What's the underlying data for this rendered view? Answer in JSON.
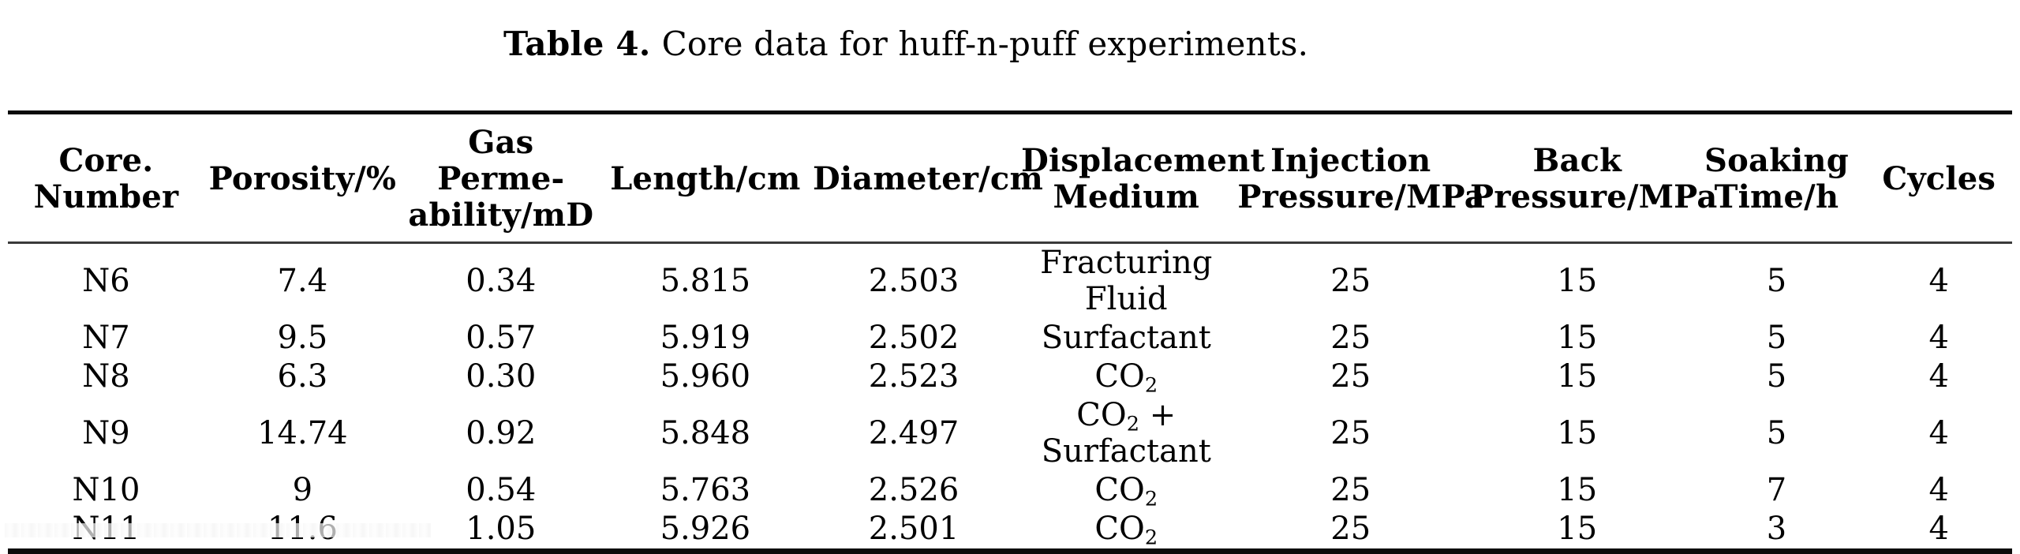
{
  "caption": {
    "label": "Table 4.",
    "text": "Core data for huff-n-puff experiments."
  },
  "table": {
    "columns": [
      "Core.\nNumber",
      "Porosity/%",
      "Gas Perme-\nability/mD",
      "Length/cm",
      "Diameter/cm",
      "Displacement\nMedium",
      "Injection\nPressure/MPa",
      "Back\nPressure/MPa",
      "Soaking\nTime/h",
      "Cycles"
    ],
    "rows": [
      [
        "N6",
        "7.4",
        "0.34",
        "5.815",
        "2.503",
        "Fracturing\nFluid",
        "25",
        "15",
        "5",
        "4"
      ],
      [
        "N7",
        "9.5",
        "0.57",
        "5.919",
        "2.502",
        "Surfactant",
        "25",
        "15",
        "5",
        "4"
      ],
      [
        "N8",
        "6.3",
        "0.30",
        "5.960",
        "2.523",
        "CO₂",
        "25",
        "15",
        "5",
        "4"
      ],
      [
        "N9",
        "14.74",
        "0.92",
        "5.848",
        "2.497",
        "CO₂ +\nSurfactant",
        "25",
        "15",
        "5",
        "4"
      ],
      [
        "N10",
        "9",
        "0.54",
        "5.763",
        "2.526",
        "CO₂",
        "25",
        "15",
        "7",
        "4"
      ],
      [
        "N11",
        "11.6",
        "1.05",
        "5.926",
        "2.501",
        "CO₂",
        "25",
        "15",
        "3",
        "4"
      ]
    ],
    "colors": {
      "rule": "#0a0a0a",
      "text": "#000000",
      "background": "#ffffff"
    }
  }
}
